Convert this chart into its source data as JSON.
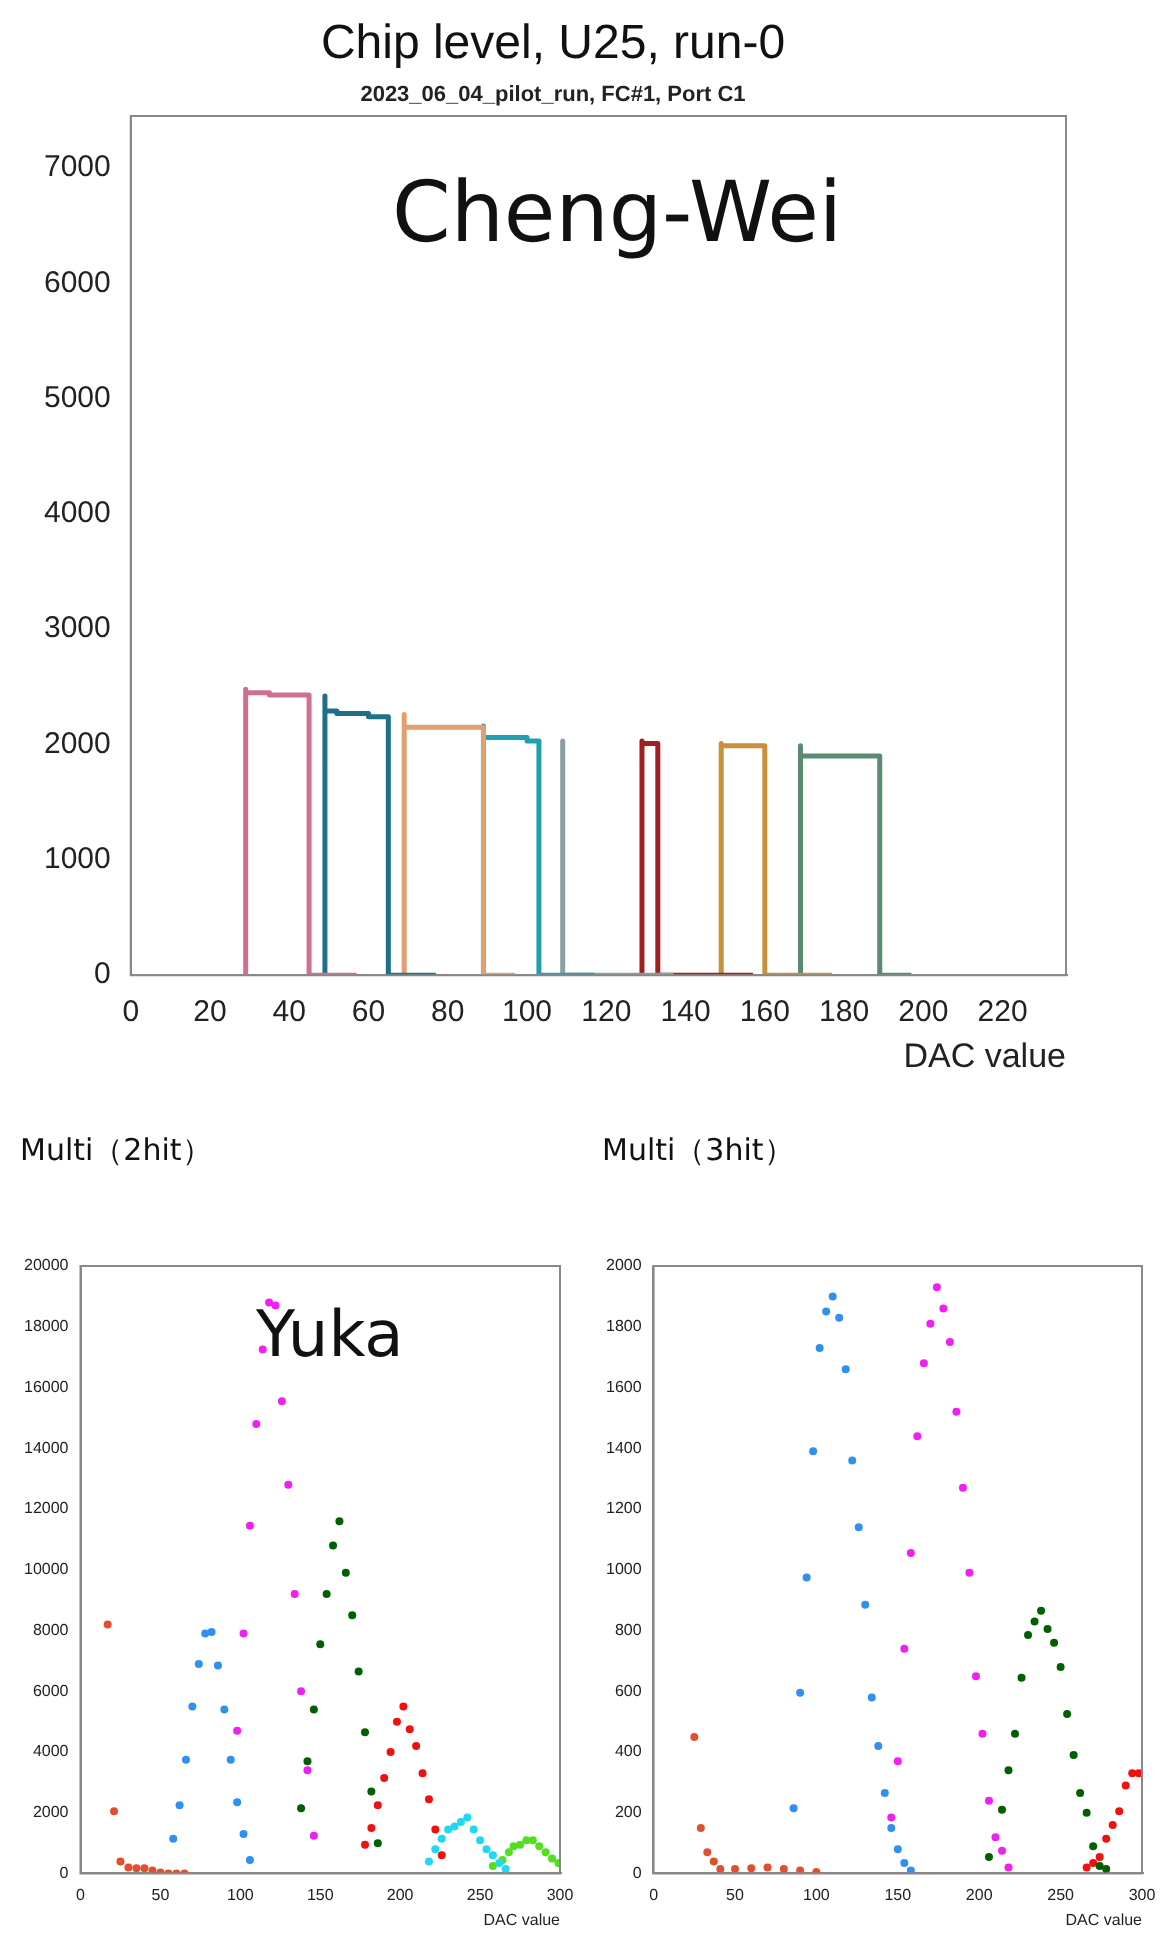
{
  "chart_data": [
    {
      "type": "step",
      "title": "Chip level, U25, run-0",
      "subtitle": "2023_06_04_pilot_run, FC#1, Port C1",
      "xlabel": "DAC value",
      "annotations": [
        "Cheng-Wei"
      ],
      "xlim": [
        0,
        236
      ],
      "xticks": [
        0,
        20,
        40,
        60,
        80,
        100,
        120,
        140,
        160,
        180,
        200,
        220
      ],
      "ylim": [
        0,
        7450
      ],
      "yticks": [
        0,
        1000,
        2000,
        3000,
        4000,
        5000,
        6000,
        7000
      ],
      "marker": "none",
      "series": [
        {
          "color": "#d07090",
          "x": [
            29,
            29,
            35,
            45,
            57
          ],
          "values": [
            0,
            2480,
            2450,
            2430,
            0
          ]
        },
        {
          "color": "#1f6f8b",
          "x": [
            49,
            49,
            52,
            60,
            65,
            77
          ],
          "values": [
            0,
            2420,
            2290,
            2270,
            2240,
            0
          ]
        },
        {
          "color": "#e0a070",
          "x": [
            69,
            69,
            89,
            97
          ],
          "values": [
            0,
            2260,
            2150,
            0
          ]
        },
        {
          "color": "#20a0b0",
          "x": [
            89,
            89,
            100,
            103,
            117
          ],
          "values": [
            0,
            2160,
            2060,
            2030,
            0
          ]
        },
        {
          "color": "#8aa0a0",
          "x": [
            109,
            109,
            137
          ],
          "values": [
            0,
            2030,
            0
          ]
        },
        {
          "color": "#a02020",
          "x": [
            129,
            129,
            133,
            157
          ],
          "values": [
            0,
            2030,
            2010,
            0
          ]
        },
        {
          "color": "#c8903a",
          "x": [
            149,
            149,
            160,
            177
          ],
          "values": [
            0,
            2010,
            1990,
            0
          ]
        },
        {
          "color": "#5a8a70",
          "x": [
            169,
            169,
            189,
            197
          ],
          "values": [
            0,
            1990,
            1900,
            0
          ]
        }
      ]
    },
    {
      "type": "scatter",
      "title": "Multi（2hit）",
      "xlabel": "DAC value",
      "annotations": [
        "Yuka"
      ],
      "xlim": [
        0,
        300
      ],
      "xticks": [
        0,
        50,
        100,
        150,
        200,
        250,
        300
      ],
      "ylim": [
        0,
        20000
      ],
      "yticks": [
        0,
        2000,
        4000,
        6000,
        8000,
        10000,
        12000,
        14000,
        16000,
        18000,
        20000
      ],
      "marker": "circle",
      "series": [
        {
          "color": "#e05030",
          "x": [
            17,
            21,
            25,
            30,
            35,
            40,
            45,
            50,
            55,
            60,
            65
          ],
          "values": [
            8200,
            2050,
            400,
            200,
            180,
            180,
            100,
            40,
            0,
            0,
            0
          ]
        },
        {
          "color": "#3090f0",
          "x": [
            58,
            62,
            66,
            70,
            74,
            78,
            82,
            86,
            90,
            94,
            98,
            102,
            106
          ],
          "values": [
            1150,
            2250,
            3750,
            5500,
            6900,
            7900,
            7950,
            6850,
            5400,
            3750,
            2350,
            1300,
            450
          ]
        },
        {
          "color": "#f020f0",
          "x": [
            98,
            102,
            106,
            110,
            114,
            118,
            122,
            126,
            130,
            134,
            138,
            142,
            146
          ],
          "values": [
            4700,
            7900,
            11450,
            14800,
            17250,
            18800,
            18700,
            15550,
            12800,
            9200,
            6000,
            3400,
            1250
          ]
        },
        {
          "color": "#006000",
          "x": [
            138,
            142,
            146,
            150,
            154,
            158,
            162,
            166,
            170,
            174,
            178,
            182,
            186
          ],
          "values": [
            2150,
            3700,
            5400,
            7550,
            9200,
            10800,
            11600,
            9900,
            8500,
            6650,
            4650,
            2700,
            1000
          ]
        },
        {
          "color": "#f01010",
          "x": [
            178,
            182,
            186,
            190,
            194,
            198,
            202,
            206,
            210,
            214,
            218,
            222,
            226
          ],
          "values": [
            950,
            1500,
            2250,
            3150,
            4000,
            5000,
            5500,
            4750,
            4200,
            3300,
            2450,
            1450,
            600
          ]
        },
        {
          "color": "#20d8f0",
          "x": [
            218,
            222,
            226,
            230,
            234,
            238,
            242,
            246,
            250,
            254,
            258,
            262,
            266
          ],
          "values": [
            400,
            800,
            1150,
            1450,
            1550,
            1700,
            1850,
            1450,
            1100,
            800,
            600,
            350,
            150
          ]
        },
        {
          "color": "#50e020",
          "x": [
            258,
            264,
            268,
            271,
            275,
            279,
            283,
            287,
            291,
            295,
            299
          ],
          "values": [
            250,
            450,
            700,
            900,
            950,
            1100,
            1100,
            900,
            700,
            500,
            350
          ]
        }
      ]
    },
    {
      "type": "scatter",
      "title": "Multi（3hit）",
      "xlabel": "DAC value",
      "xlim": [
        0,
        300
      ],
      "xticks": [
        0,
        50,
        100,
        150,
        200,
        250,
        300
      ],
      "ylim": [
        0,
        2000
      ],
      "yticks": [
        0,
        200,
        400,
        600,
        800,
        1000,
        1200,
        1400,
        1600,
        1800,
        2000
      ],
      "marker": "circle",
      "series": [
        {
          "color": "#e05030",
          "x": [
            25,
            29,
            33,
            37,
            41,
            50,
            60,
            70,
            80,
            90,
            100
          ],
          "values": [
            450,
            150,
            70,
            40,
            15,
            15,
            18,
            20,
            15,
            10,
            5
          ]
        },
        {
          "color": "#3090f0",
          "x": [
            86,
            90,
            94,
            98,
            102,
            106,
            110,
            114,
            118,
            122,
            126,
            130,
            134,
            138,
            142,
            146,
            150,
            154,
            158
          ],
          "values": [
            215,
            595,
            975,
            1390,
            1730,
            1850,
            1900,
            1830,
            1660,
            1360,
            1140,
            885,
            580,
            420,
            265,
            150,
            80,
            35,
            10
          ]
        },
        {
          "color": "#f020f0",
          "x": [
            146,
            150,
            154,
            158,
            162,
            166,
            170,
            174,
            178,
            182,
            186,
            190,
            194,
            198,
            202,
            206,
            210,
            214,
            218
          ],
          "values": [
            185,
            370,
            740,
            1055,
            1440,
            1680,
            1810,
            1930,
            1860,
            1750,
            1520,
            1270,
            990,
            650,
            460,
            240,
            120,
            75,
            20
          ]
        },
        {
          "color": "#006000",
          "x": [
            206,
            210,
            214,
            218,
            222,
            226,
            230,
            234,
            238,
            242,
            246,
            250,
            254,
            258,
            262,
            266,
            270,
            274,
            278
          ],
          "values": [
            55,
            null,
            210,
            340,
            460,
            645,
            785,
            830,
            865,
            805,
            760,
            680,
            525,
            390,
            265,
            200,
            90,
            25,
            15
          ]
        },
        {
          "color": "#f01010",
          "x": [
            266,
            270,
            274,
            278,
            282,
            286,
            290,
            294,
            298
          ],
          "values": [
            20,
            35,
            55,
            115,
            160,
            205,
            290,
            330,
            330
          ]
        }
      ]
    }
  ]
}
